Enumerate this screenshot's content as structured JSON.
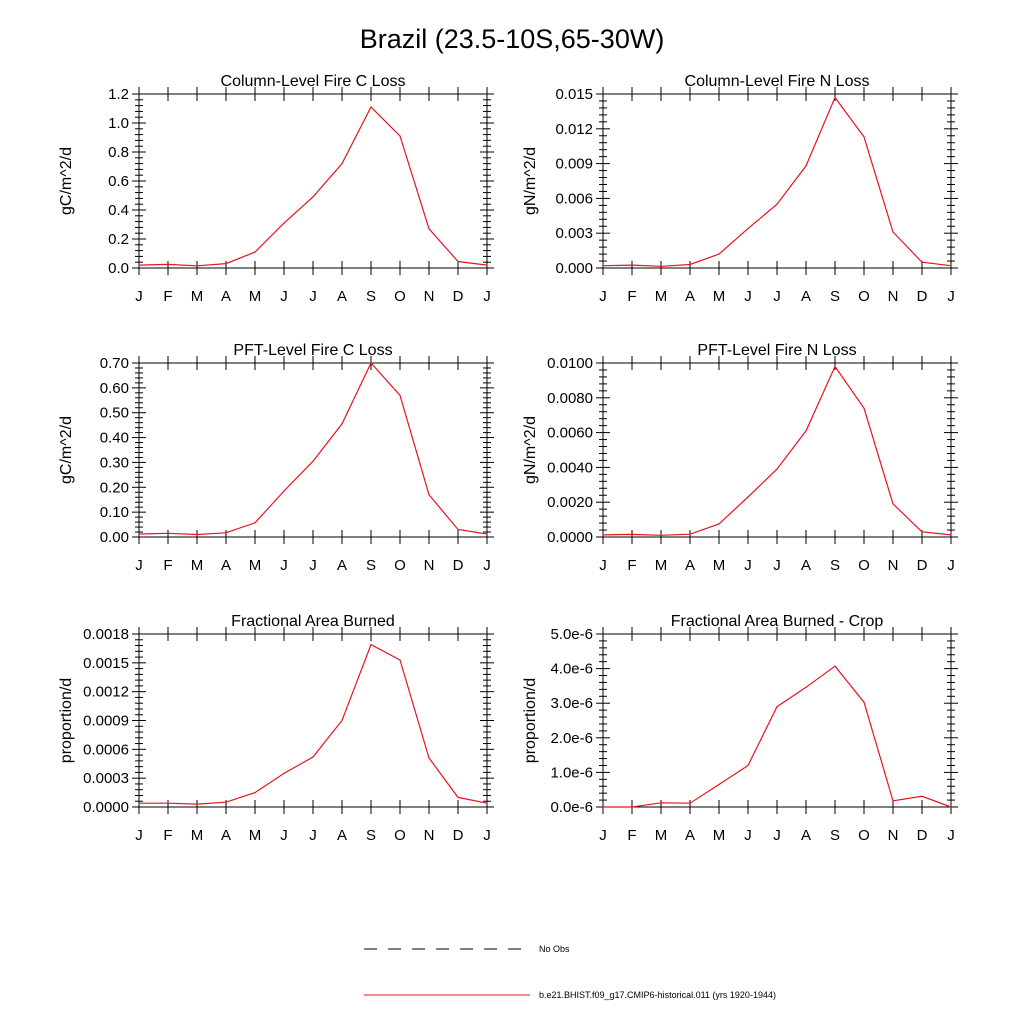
{
  "figure": {
    "title": "Brazil (23.5-10S,65-30W)",
    "months": [
      "J",
      "F",
      "M",
      "A",
      "M",
      "J",
      "J",
      "A",
      "S",
      "O",
      "N",
      "D",
      "J"
    ],
    "series_color": "#e8141e",
    "legend": {
      "obs_label": "No Obs",
      "model_label": "b.e21.BHIST.f09_g17.CMIP6-historical.011 (yrs 1920-1944)"
    }
  },
  "chart_data": [
    {
      "type": "line",
      "title": "Column-Level Fire C Loss",
      "ylabel": "gC/m^2/d",
      "ylim": [
        0,
        1.2
      ],
      "yticks": [
        "0.0",
        "0.2",
        "0.4",
        "0.6",
        "0.8",
        "1.0",
        "1.2"
      ],
      "categories": [
        "J",
        "F",
        "M",
        "A",
        "M",
        "J",
        "J",
        "A",
        "S",
        "O",
        "N",
        "D",
        "J"
      ],
      "series": [
        {
          "values": [
            0.02,
            0.025,
            0.015,
            0.03,
            0.11,
            0.31,
            0.49,
            0.72,
            1.11,
            0.91,
            0.27,
            0.045,
            0.02
          ]
        }
      ]
    },
    {
      "type": "line",
      "title": "Column-Level Fire N Loss",
      "ylabel": "gN/m^2/d",
      "ylim": [
        0,
        0.015
      ],
      "yticks": [
        "0.000",
        "0.003",
        "0.006",
        "0.009",
        "0.012",
        "0.015"
      ],
      "categories": [
        "J",
        "F",
        "M",
        "A",
        "M",
        "J",
        "J",
        "A",
        "S",
        "O",
        "N",
        "D",
        "J"
      ],
      "series": [
        {
          "values": [
            0.0002,
            0.00025,
            0.00015,
            0.0003,
            0.0012,
            0.0034,
            0.0055,
            0.0088,
            0.0147,
            0.0113,
            0.0031,
            0.0005,
            0.0002
          ]
        }
      ]
    },
    {
      "type": "line",
      "title": "PFT-Level Fire C Loss",
      "ylabel": "gC/m^2/d",
      "ylim": [
        0,
        0.7
      ],
      "yticks": [
        "0.00",
        "0.10",
        "0.20",
        "0.30",
        "0.40",
        "0.50",
        "0.60",
        "0.70"
      ],
      "categories": [
        "J",
        "F",
        "M",
        "A",
        "M",
        "J",
        "J",
        "A",
        "S",
        "O",
        "N",
        "D",
        "J"
      ],
      "series": [
        {
          "values": [
            0.012,
            0.015,
            0.01,
            0.017,
            0.057,
            0.185,
            0.305,
            0.455,
            0.7,
            0.57,
            0.17,
            0.03,
            0.012
          ]
        }
      ]
    },
    {
      "type": "line",
      "title": "PFT-Level Fire N Loss",
      "ylabel": "gN/m^2/d",
      "ylim": [
        0,
        0.01
      ],
      "yticks": [
        "0.0000",
        "0.0020",
        "0.0040",
        "0.0060",
        "0.0080",
        "0.0100"
      ],
      "categories": [
        "J",
        "F",
        "M",
        "A",
        "M",
        "J",
        "J",
        "A",
        "S",
        "O",
        "N",
        "D",
        "J"
      ],
      "series": [
        {
          "values": [
            0.00012,
            0.00015,
            0.0001,
            0.00016,
            0.00075,
            0.0023,
            0.0039,
            0.0061,
            0.0098,
            0.0074,
            0.0019,
            0.0003,
            0.00012
          ]
        }
      ]
    },
    {
      "type": "line",
      "title": "Fractional Area Burned",
      "ylabel": "proportion/d",
      "ylim": [
        0,
        0.0018
      ],
      "yticks": [
        "0.0000",
        "0.0003",
        "0.0006",
        "0.0009",
        "0.0012",
        "0.0015",
        "0.0018"
      ],
      "categories": [
        "J",
        "F",
        "M",
        "A",
        "M",
        "J",
        "J",
        "A",
        "S",
        "O",
        "N",
        "D",
        "J"
      ],
      "series": [
        {
          "values": [
            4e-05,
            4e-05,
            3e-05,
            5e-05,
            0.00015,
            0.00035,
            0.00052,
            0.0009,
            0.00169,
            0.00153,
            0.00051,
            0.0001,
            4e-05
          ]
        }
      ]
    },
    {
      "type": "line",
      "title": "Fractional Area Burned - Crop",
      "ylabel": "proportion/d",
      "ylim": [
        0,
        5e-06
      ],
      "yticks": [
        "0.0e-6",
        "1.0e-6",
        "2.0e-6",
        "3.0e-6",
        "4.0e-6",
        "5.0e-6"
      ],
      "categories": [
        "J",
        "F",
        "M",
        "A",
        "M",
        "J",
        "J",
        "A",
        "S",
        "O",
        "N",
        "D",
        "J"
      ],
      "series": [
        {
          "values": [
            0.0,
            0.0,
            1.2e-07,
            1.1e-07,
            6.5e-07,
            1.2e-06,
            2.9e-06,
            3.46e-06,
            4.07e-06,
            3.03e-06,
            1.8e-07,
            3.1e-07,
            0.0
          ]
        }
      ]
    }
  ]
}
